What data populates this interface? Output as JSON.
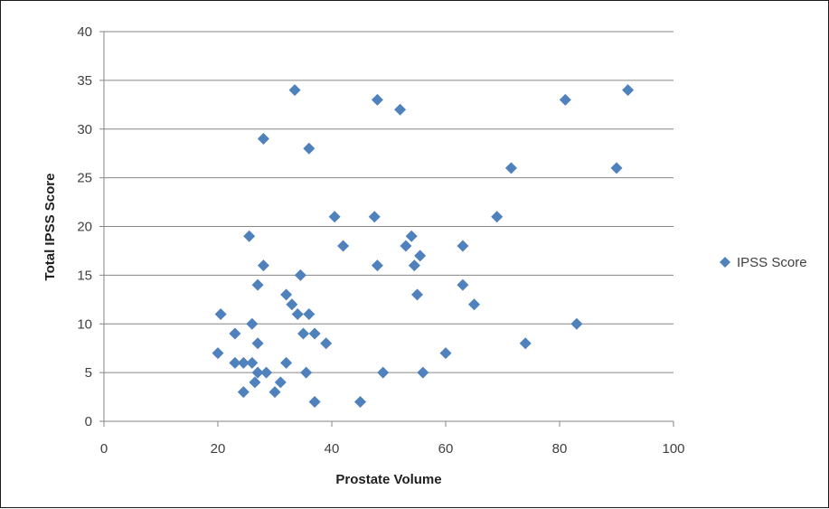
{
  "chart_data": {
    "type": "scatter",
    "title": "",
    "xlabel": "Prostate Volume",
    "ylabel": "Total IPSS Score",
    "xlim": [
      0,
      100
    ],
    "ylim": [
      0,
      40
    ],
    "x_ticks": [
      "0",
      "20",
      "40",
      "60",
      "80",
      "100"
    ],
    "y_ticks": [
      "0",
      "5",
      "10",
      "15",
      "20",
      "25",
      "30",
      "35",
      "40"
    ],
    "grid": "horizontal",
    "legend_position": "right",
    "series": [
      {
        "name": "IPSS Score",
        "color": "#4f81bd",
        "marker": "diamond",
        "points": [
          [
            20,
            7
          ],
          [
            20.5,
            11
          ],
          [
            23,
            9
          ],
          [
            23,
            6
          ],
          [
            24.5,
            6
          ],
          [
            24.5,
            3
          ],
          [
            25.5,
            19
          ],
          [
            26,
            10
          ],
          [
            26,
            6
          ],
          [
            26.5,
            4
          ],
          [
            27,
            14
          ],
          [
            27,
            8
          ],
          [
            27,
            5
          ],
          [
            28,
            29
          ],
          [
            28,
            16
          ],
          [
            28.5,
            5
          ],
          [
            30,
            3
          ],
          [
            31,
            4
          ],
          [
            32,
            13
          ],
          [
            32,
            6
          ],
          [
            33,
            12
          ],
          [
            33.5,
            34
          ],
          [
            34,
            11
          ],
          [
            34.5,
            15
          ],
          [
            35,
            9
          ],
          [
            35.5,
            5
          ],
          [
            36,
            11
          ],
          [
            36,
            28
          ],
          [
            37,
            9
          ],
          [
            37,
            2
          ],
          [
            39,
            8
          ],
          [
            40.5,
            21
          ],
          [
            42,
            18
          ],
          [
            45,
            2
          ],
          [
            47.5,
            21
          ],
          [
            48,
            33
          ],
          [
            48,
            16
          ],
          [
            49,
            5
          ],
          [
            52,
            32
          ],
          [
            53,
            18
          ],
          [
            54,
            19
          ],
          [
            54.5,
            16
          ],
          [
            55,
            13
          ],
          [
            55.5,
            17
          ],
          [
            56,
            5
          ],
          [
            60,
            7
          ],
          [
            63,
            18
          ],
          [
            63,
            14
          ],
          [
            65,
            12
          ],
          [
            69,
            21
          ],
          [
            71.5,
            26
          ],
          [
            74,
            8
          ],
          [
            81,
            33
          ],
          [
            83,
            10
          ],
          [
            90,
            26
          ],
          [
            92,
            34
          ]
        ]
      }
    ]
  }
}
